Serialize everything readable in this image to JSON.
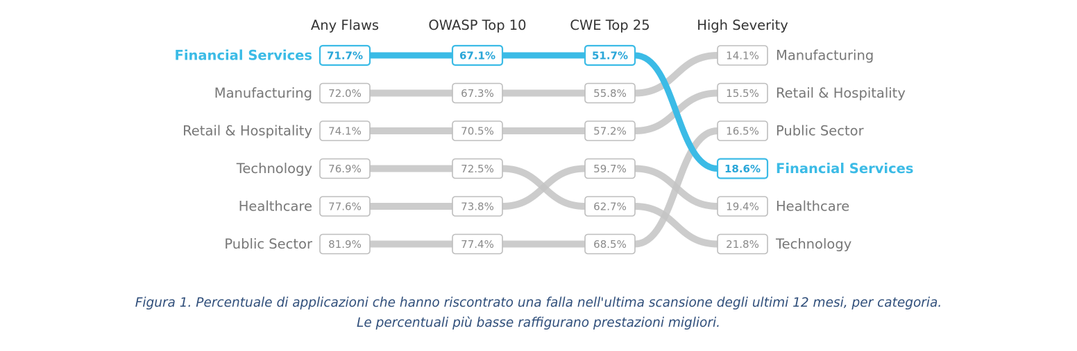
{
  "chart_data": {
    "type": "slope",
    "columns": [
      "Any Flaws",
      "OWASP Top 10",
      "CWE Top 25",
      "High Severity"
    ],
    "highlight": "Financial Services",
    "colors": {
      "highlight": "#3bbbe6",
      "base": "#c3c3c3",
      "text": "#777777",
      "box_text": "#8a8a8a"
    },
    "series": [
      {
        "name": "Financial Services",
        "values": [
          "71.7%",
          "67.1%",
          "51.7%",
          "18.6%"
        ],
        "ranks": [
          1,
          1,
          1,
          4
        ]
      },
      {
        "name": "Manufacturing",
        "values": [
          "72.0%",
          "67.3%",
          "55.8%",
          "14.1%"
        ],
        "ranks": [
          2,
          2,
          2,
          1
        ]
      },
      {
        "name": "Retail & Hospitality",
        "values": [
          "74.1%",
          "70.5%",
          "57.2%",
          "15.5%"
        ],
        "ranks": [
          3,
          3,
          3,
          2
        ]
      },
      {
        "name": "Technology",
        "values": [
          "76.9%",
          "72.5%",
          "62.7%",
          "21.8%"
        ],
        "ranks": [
          4,
          4,
          5,
          6
        ]
      },
      {
        "name": "Healthcare",
        "values": [
          "77.6%",
          "73.8%",
          "59.7%",
          "19.4%"
        ],
        "ranks": [
          5,
          5,
          4,
          5
        ]
      },
      {
        "name": "Public Sector",
        "values": [
          "81.9%",
          "77.4%",
          "68.5%",
          "16.5%"
        ],
        "ranks": [
          6,
          6,
          6,
          3
        ]
      }
    ]
  },
  "caption": {
    "line1": "Figura 1. Percentuale di applicazioni che hanno riscontrato una falla nell'ultima scansione degli ultimi 12 mesi, per categoria.",
    "line2": "Le percentuali più basse raffigurano prestazioni migliori."
  }
}
